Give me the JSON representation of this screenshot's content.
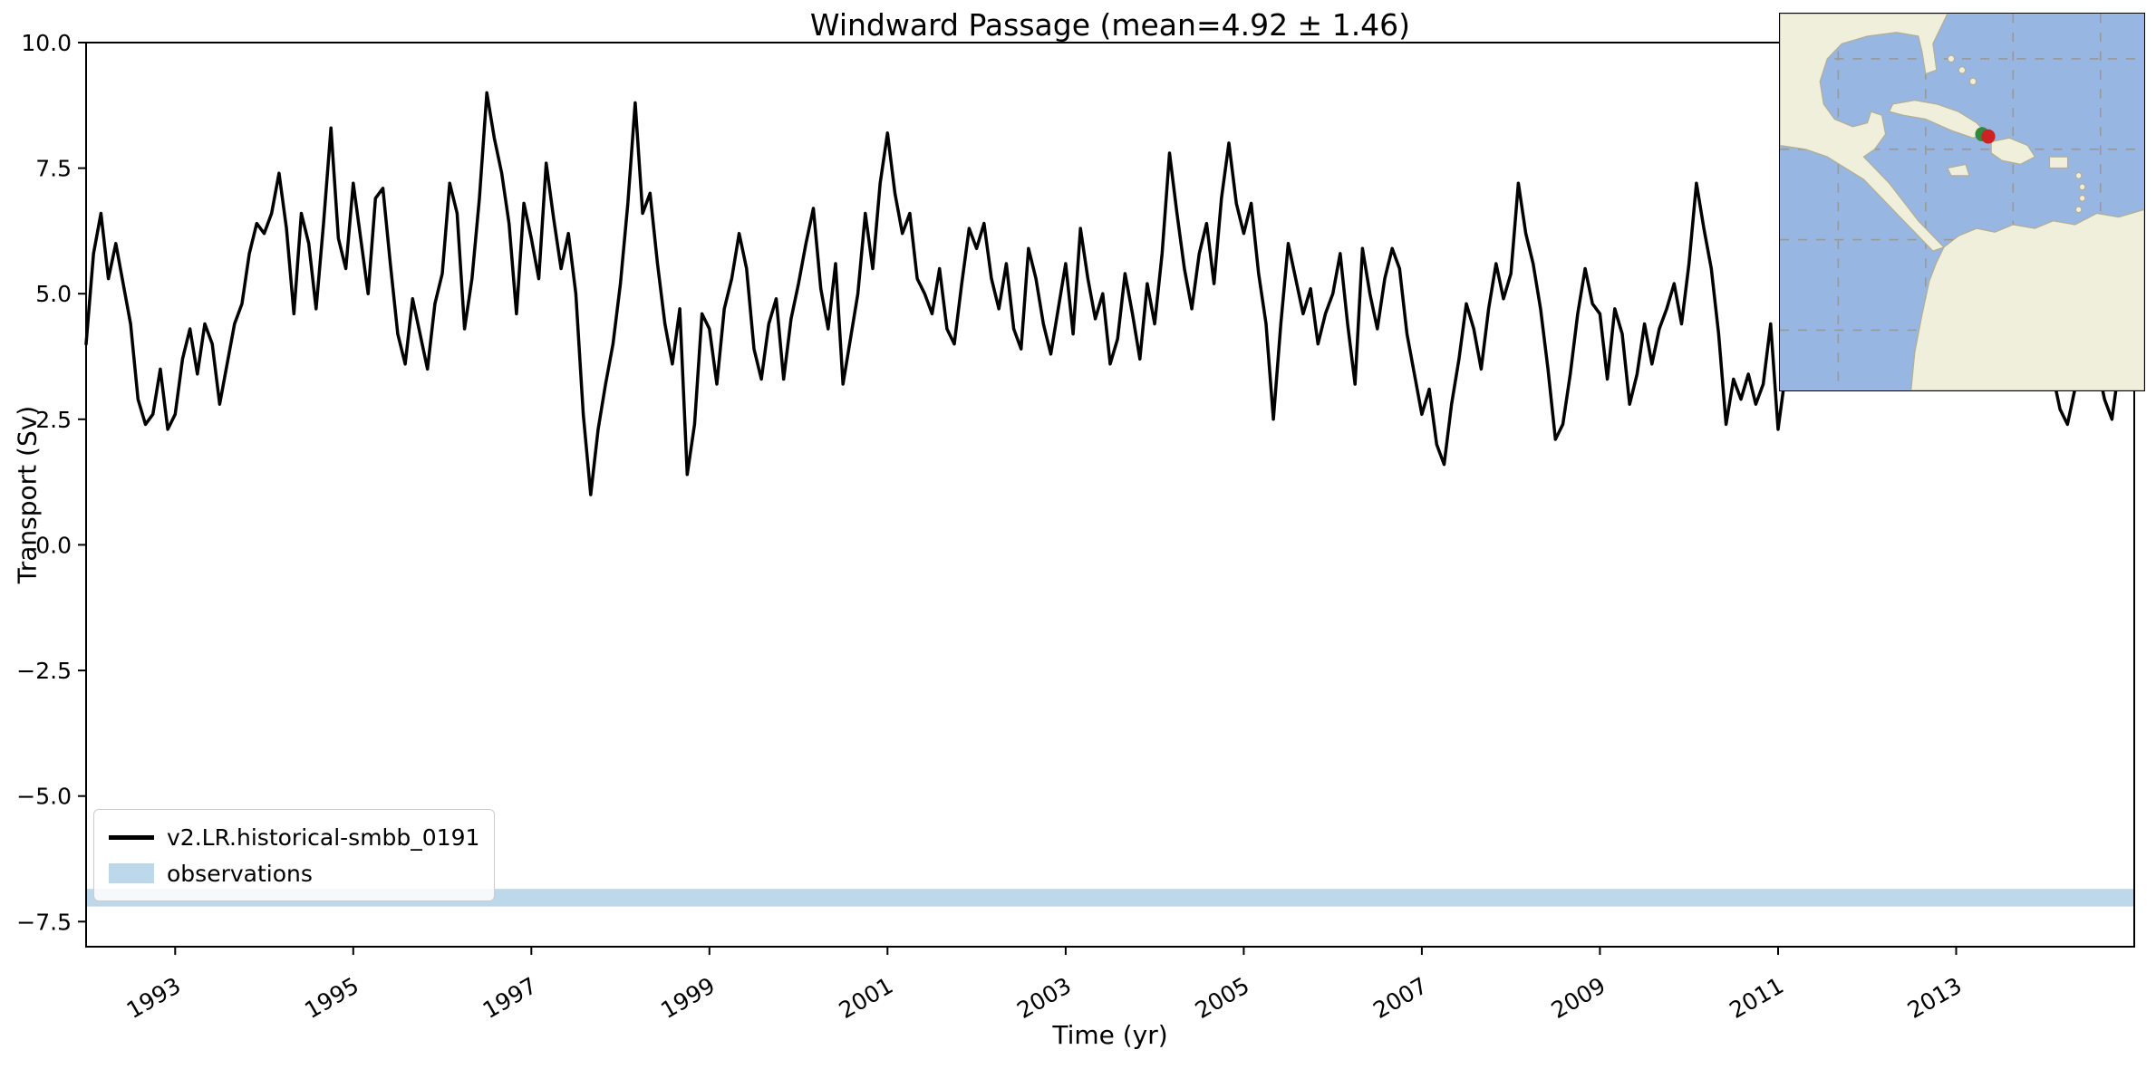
{
  "figure": {
    "background": "#ffffff"
  },
  "chart_data": {
    "type": "line",
    "title": "Windward Passage (mean=4.92 ± 1.46)",
    "xlabel": "Time (yr)",
    "ylabel": "Transport (Sv)",
    "mean": 4.92,
    "std": 1.46,
    "xlim": [
      1992.0,
      2015.0
    ],
    "ylim": [
      -8.0,
      10.0
    ],
    "xticks": [
      1993,
      1995,
      1997,
      1999,
      2001,
      2003,
      2005,
      2007,
      2009,
      2011,
      2013
    ],
    "xtick_labels": [
      "1993",
      "1995",
      "1997",
      "1999",
      "2001",
      "2003",
      "2005",
      "2007",
      "2009",
      "2011",
      "2013"
    ],
    "yticks": [
      10.0,
      7.5,
      5.0,
      2.5,
      0.0,
      -2.5,
      -5.0,
      -7.5
    ],
    "ytick_labels": [
      "10.0",
      "7.5",
      "5.0",
      "2.5",
      "0.0",
      "−2.5",
      "−5.0",
      "−7.5"
    ],
    "grid": false,
    "legend_position": "lower left",
    "series": [
      {
        "name": "v2.LR.historical-smbb_0191",
        "color": "#000000",
        "line_width": 3.5,
        "x_start": 1992.0,
        "x_step_years": 0.0833333,
        "values": [
          4.0,
          5.8,
          6.6,
          5.3,
          6.0,
          5.2,
          4.4,
          2.9,
          2.4,
          2.6,
          3.5,
          2.3,
          2.6,
          3.7,
          4.3,
          3.4,
          4.4,
          4.0,
          2.8,
          3.6,
          4.4,
          4.8,
          5.8,
          6.4,
          6.2,
          6.6,
          7.4,
          6.3,
          4.6,
          6.6,
          6.0,
          4.7,
          6.4,
          8.3,
          6.1,
          5.5,
          7.2,
          6.1,
          5.0,
          6.9,
          7.1,
          5.6,
          4.2,
          3.6,
          4.9,
          4.2,
          3.5,
          4.8,
          5.4,
          7.2,
          6.6,
          4.3,
          5.3,
          6.9,
          9.0,
          8.1,
          7.4,
          6.4,
          4.6,
          6.8,
          6.1,
          5.3,
          7.6,
          6.5,
          5.5,
          6.2,
          5.0,
          2.6,
          1.0,
          2.3,
          3.2,
          4.0,
          5.2,
          6.8,
          8.8,
          6.6,
          7.0,
          5.6,
          4.4,
          3.6,
          4.7,
          1.4,
          2.4,
          4.6,
          4.3,
          3.2,
          4.7,
          5.3,
          6.2,
          5.5,
          3.9,
          3.3,
          4.4,
          4.9,
          3.3,
          4.5,
          5.2,
          6.0,
          6.7,
          5.1,
          4.3,
          5.6,
          3.2,
          4.1,
          5.0,
          6.6,
          5.5,
          7.2,
          8.2,
          7.0,
          6.2,
          6.6,
          5.3,
          5.0,
          4.6,
          5.5,
          4.3,
          4.0,
          5.2,
          6.3,
          5.9,
          6.4,
          5.3,
          4.7,
          5.6,
          4.3,
          3.9,
          5.9,
          5.3,
          4.4,
          3.8,
          4.7,
          5.6,
          4.2,
          6.3,
          5.3,
          4.5,
          5.0,
          3.6,
          4.1,
          5.4,
          4.6,
          3.7,
          5.2,
          4.4,
          5.8,
          7.8,
          6.6,
          5.5,
          4.7,
          5.8,
          6.4,
          5.2,
          6.9,
          8.0,
          6.8,
          6.2,
          6.8,
          5.4,
          4.4,
          2.5,
          4.4,
          6.0,
          5.3,
          4.6,
          5.1,
          4.0,
          4.6,
          5.0,
          5.8,
          4.4,
          3.2,
          5.9,
          5.0,
          4.3,
          5.3,
          5.9,
          5.5,
          4.2,
          3.4,
          2.6,
          3.1,
          2.0,
          1.6,
          2.8,
          3.7,
          4.8,
          4.3,
          3.5,
          4.7,
          5.6,
          4.9,
          5.4,
          7.2,
          6.2,
          5.6,
          4.7,
          3.5,
          2.1,
          2.4,
          3.4,
          4.6,
          5.5,
          4.8,
          4.6,
          3.3,
          4.7,
          4.2,
          2.8,
          3.4,
          4.4,
          3.6,
          4.3,
          4.7,
          5.2,
          4.4,
          5.6,
          7.2,
          6.3,
          5.5,
          4.2,
          2.4,
          3.3,
          2.9,
          3.4,
          2.8,
          3.2,
          4.4,
          2.3,
          3.4,
          4.8,
          5.4,
          4.6,
          5.2,
          4.4,
          3.8,
          4.6,
          5.6,
          4.8,
          4.2,
          5.2,
          6.0,
          6.6,
          5.2,
          4.4,
          5.3,
          4.7,
          3.9,
          4.6,
          5.4,
          6.2,
          5.6,
          4.8,
          5.7,
          6.4,
          5.0,
          4.2,
          4.8,
          5.5,
          4.6,
          3.8,
          4.4,
          5.2,
          4.6,
          4.0,
          3.4,
          2.7,
          2.4,
          3.1,
          3.8,
          4.4,
          3.6,
          2.9,
          2.5,
          3.6,
          4.5
        ]
      }
    ],
    "observations_band": {
      "name": "observations",
      "color": "#bdd7eb",
      "ymin": -7.2,
      "ymax": -6.85
    }
  },
  "legend": {
    "items": [
      {
        "label": "v2.LR.historical-smbb_0191",
        "swatch": "line",
        "color": "#000000"
      },
      {
        "label": "observations",
        "swatch": "patch",
        "color": "#bdd7eb"
      }
    ]
  },
  "inset_map": {
    "ocean_color": "#97b6e1",
    "land_color": "#efefdb",
    "grid_color": "#999999",
    "coast_color": "#b3ae93",
    "marker_red_color": "#cc2222",
    "marker_green_color": "#2e8b3d"
  }
}
